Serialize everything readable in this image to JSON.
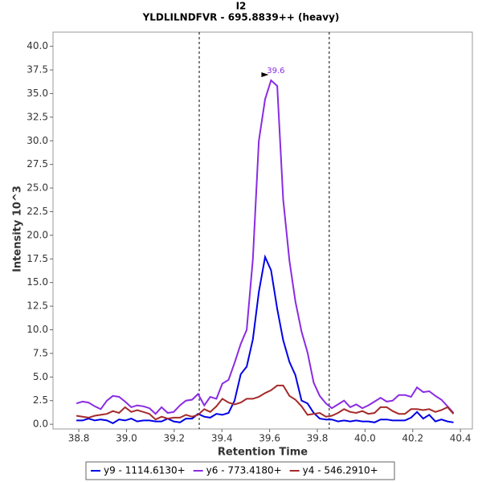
{
  "chart_data": {
    "type": "line",
    "title": "I2",
    "subtitle": "YLDLILNDFVR - 695.8839++ (heavy)",
    "x_label": "Retention Time",
    "y_label": "Intensity 10^3",
    "xlim": [
      38.692,
      40.45
    ],
    "ylim": [
      -0.5,
      41.5
    ],
    "xticks": [
      38.8,
      {
        "value": 39,
        "label": "39.0"
      },
      39.2,
      39.4,
      39.6,
      39.8,
      {
        "value": 40,
        "label": "40.0"
      },
      40.2,
      40.4
    ],
    "yticks": [
      {
        "value": 0,
        "label": "0.0"
      },
      2.5,
      {
        "value": 5,
        "label": "5.0"
      },
      7.5,
      {
        "value": 10,
        "label": "10.0"
      },
      12.5,
      {
        "value": 15,
        "label": "15.0"
      },
      17.5,
      {
        "value": 20,
        "label": "20.0"
      },
      22.5,
      {
        "value": 25,
        "label": "25.0"
      },
      27.5,
      {
        "value": 30,
        "label": "30.0"
      },
      32.5,
      {
        "value": 35,
        "label": "35.0"
      },
      37.5,
      {
        "value": 40,
        "label": "40.0"
      }
    ],
    "grid": false,
    "legend": "bottom",
    "boundaries": [
      39.305,
      39.85
    ],
    "peak_annotation": {
      "text": "39.6",
      "series": 1,
      "index": 32
    },
    "x": [
      38.79,
      38.816,
      38.841,
      38.867,
      38.892,
      38.918,
      38.943,
      38.969,
      38.994,
      39.02,
      39.045,
      39.071,
      39.096,
      39.122,
      39.147,
      39.173,
      39.198,
      39.224,
      39.249,
      39.275,
      39.3,
      39.326,
      39.351,
      39.377,
      39.402,
      39.428,
      39.453,
      39.479,
      39.504,
      39.53,
      39.555,
      39.581,
      39.606,
      39.632,
      39.657,
      39.683,
      39.708,
      39.734,
      39.759,
      39.785,
      39.81,
      39.836,
      39.861,
      39.887,
      39.912,
      39.938,
      39.963,
      39.989,
      40.014,
      40.04,
      40.065,
      40.091,
      40.116,
      40.142,
      40.167,
      40.193,
      40.218,
      40.244,
      40.269,
      40.295,
      40.32,
      40.346,
      40.371
    ],
    "series": [
      {
        "name": "y9 - 1114.6130+",
        "color": "#0000e6",
        "values": [
          0.4,
          0.4,
          0.6,
          0.4,
          0.5,
          0.4,
          0.1,
          0.5,
          0.4,
          0.6,
          0.3,
          0.4,
          0.4,
          0.3,
          0.3,
          0.6,
          0.3,
          0.2,
          0.6,
          0.6,
          1.1,
          0.8,
          0.7,
          1.1,
          1.0,
          1.2,
          2.5,
          5.3,
          6.1,
          9.0,
          14.0,
          17.7,
          16.3,
          12.2,
          8.9,
          6.6,
          5.2,
          2.5,
          2.2,
          1.2,
          0.6,
          0.5,
          0.5,
          0.3,
          0.4,
          0.3,
          0.4,
          0.3,
          0.3,
          0.2,
          0.5,
          0.5,
          0.4,
          0.4,
          0.4,
          0.7,
          1.3,
          0.6,
          1.0,
          0.3,
          0.5,
          0.3,
          0.2
        ]
      },
      {
        "name": "y6 - 773.4180+",
        "color": "#8a2be2",
        "values": [
          2.2,
          2.4,
          2.3,
          1.9,
          1.6,
          2.5,
          3.0,
          2.9,
          2.4,
          1.8,
          2.0,
          1.9,
          1.7,
          1.1,
          1.8,
          1.2,
          1.3,
          2.0,
          2.5,
          2.6,
          3.2,
          2.0,
          2.9,
          2.7,
          4.3,
          4.7,
          6.5,
          8.5,
          10.0,
          17.5,
          30.0,
          34.4,
          36.4,
          35.8,
          23.8,
          17.3,
          13.0,
          9.8,
          7.6,
          4.4,
          3.0,
          2.2,
          1.7,
          2.1,
          2.5,
          1.8,
          2.1,
          1.7,
          2.0,
          2.4,
          2.8,
          2.4,
          2.5,
          3.1,
          3.1,
          2.9,
          3.9,
          3.4,
          3.5,
          3.0,
          2.6,
          1.9,
          1.2
        ]
      },
      {
        "name": "y4 - 546.2910+",
        "color": "#a52a2a",
        "values": [
          0.9,
          0.8,
          0.7,
          0.9,
          1.0,
          1.1,
          1.4,
          1.2,
          1.8,
          1.3,
          1.5,
          1.3,
          1.1,
          0.5,
          0.8,
          0.6,
          0.7,
          0.7,
          1.0,
          0.8,
          1.0,
          1.6,
          1.3,
          1.9,
          2.7,
          2.3,
          2.1,
          2.3,
          2.7,
          2.7,
          2.9,
          3.3,
          3.6,
          4.1,
          4.1,
          3.0,
          2.6,
          1.9,
          1.0,
          1.1,
          1.2,
          0.8,
          0.9,
          1.2,
          1.6,
          1.3,
          1.2,
          1.4,
          1.1,
          1.2,
          1.8,
          1.8,
          1.4,
          1.1,
          1.1,
          1.6,
          1.6,
          1.5,
          1.6,
          1.3,
          1.5,
          1.8,
          1.1
        ]
      }
    ]
  }
}
